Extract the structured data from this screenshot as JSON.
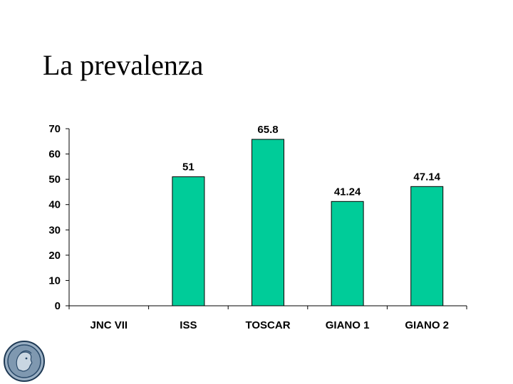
{
  "slide": {
    "title": "La prevalenza"
  },
  "chart_data": {
    "type": "bar",
    "categories": [
      "JNC VII",
      "ISS",
      "TOSCAR",
      "GIANO 1",
      "GIANO 2"
    ],
    "values": [
      null,
      51,
      65.8,
      41.24,
      47.14
    ],
    "data_labels": [
      "",
      "51",
      "65.8",
      "41.24",
      "47.14"
    ],
    "title": "",
    "xlabel": "",
    "ylabel": "",
    "ylim": [
      0,
      70
    ],
    "yticks": [
      "0",
      "10",
      "20",
      "30",
      "40",
      "50",
      "60",
      "70"
    ],
    "grid": false,
    "legend": "none",
    "bar_color": "#00cc99",
    "bar_outline": "#000000"
  },
  "logo": {
    "icon": "coin-profile-icon",
    "color": "#2a4a6a"
  }
}
